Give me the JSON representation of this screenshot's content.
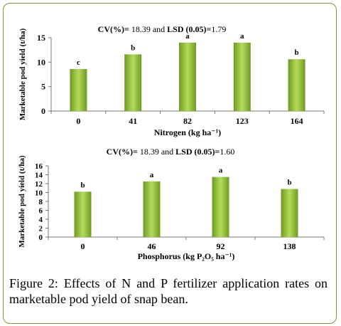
{
  "chart_data": [
    {
      "type": "bar",
      "annotation": {
        "cv_label": "CV(%)=",
        "cv_value": "18.39",
        "and": "and",
        "lsd_label": "LSD (0.05)=",
        "lsd_value": "1.79"
      },
      "categories": [
        "0",
        "41",
        "82",
        "123",
        "164"
      ],
      "values": [
        8.6,
        11.6,
        14.0,
        14.0,
        10.6
      ],
      "letters": [
        "c",
        "b",
        "a",
        "a",
        "b"
      ],
      "ylabel": "Marketable pod yield (t/ha)",
      "xlabel": "Nitrogen (kg ha⁻¹)",
      "ylim": [
        0,
        15
      ],
      "yticks": [
        "0",
        "5",
        "10",
        "15"
      ],
      "grid": false,
      "bar_color": "#92c13c"
    },
    {
      "type": "bar",
      "annotation": {
        "cv_label": "CV(%)=",
        "cv_value": "18.39",
        "and": "and",
        "lsd_label": "LSD (0.05)=",
        "lsd_value": "1.60"
      },
      "categories": [
        "0",
        "46",
        "92",
        "138"
      ],
      "values": [
        10.2,
        12.5,
        13.5,
        10.8
      ],
      "letters": [
        "b",
        "a",
        "a",
        "b"
      ],
      "ylabel": "Marketable pod yield (t/ha)",
      "xlabel": "Phosphorus (kg P₂O₅ ha⁻¹)",
      "ylim": [
        0,
        16
      ],
      "yticks": [
        "0",
        "2",
        "4",
        "6",
        "8",
        "10",
        "12",
        "14",
        "16"
      ],
      "grid": false,
      "bar_color": "#92c13c"
    }
  ],
  "figure": {
    "caption": "Figure 2: Effects of N and P fertilizer application rates on marketable pod yield of snap bean."
  }
}
